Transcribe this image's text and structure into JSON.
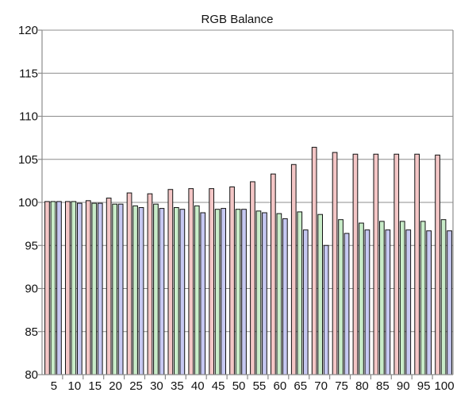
{
  "chart_data": {
    "type": "bar",
    "title": "RGB Balance",
    "xlabel": "",
    "ylabel": "",
    "ylim": [
      80,
      120
    ],
    "yticks": [
      80,
      85,
      90,
      95,
      100,
      105,
      110,
      115,
      120
    ],
    "grid": true,
    "categories": [
      "5",
      "10",
      "15",
      "20",
      "25",
      "30",
      "35",
      "40",
      "45",
      "50",
      "55",
      "60",
      "65",
      "70",
      "75",
      "80",
      "85",
      "90",
      "95",
      "100"
    ],
    "series": [
      {
        "color": "#f4c6c6",
        "values": [
          100.1,
          100.1,
          100.2,
          100.5,
          101.1,
          101.0,
          101.5,
          101.6,
          101.6,
          101.8,
          102.4,
          103.3,
          104.4,
          106.4,
          105.8,
          105.6,
          105.6,
          105.6,
          105.6,
          105.5
        ]
      },
      {
        "color": "#c8ecc8",
        "values": [
          100.1,
          100.1,
          99.9,
          99.8,
          99.6,
          99.8,
          99.4,
          99.6,
          99.2,
          99.2,
          99.0,
          98.7,
          98.9,
          98.6,
          98.0,
          97.6,
          97.8,
          97.8,
          97.8,
          98.0
        ]
      },
      {
        "color": "#c6c8f2",
        "values": [
          100.1,
          99.9,
          99.9,
          99.8,
          99.4,
          99.3,
          99.2,
          98.8,
          99.3,
          99.2,
          98.8,
          98.1,
          96.8,
          95.0,
          96.4,
          96.8,
          96.8,
          96.8,
          96.7,
          96.7
        ]
      }
    ]
  }
}
